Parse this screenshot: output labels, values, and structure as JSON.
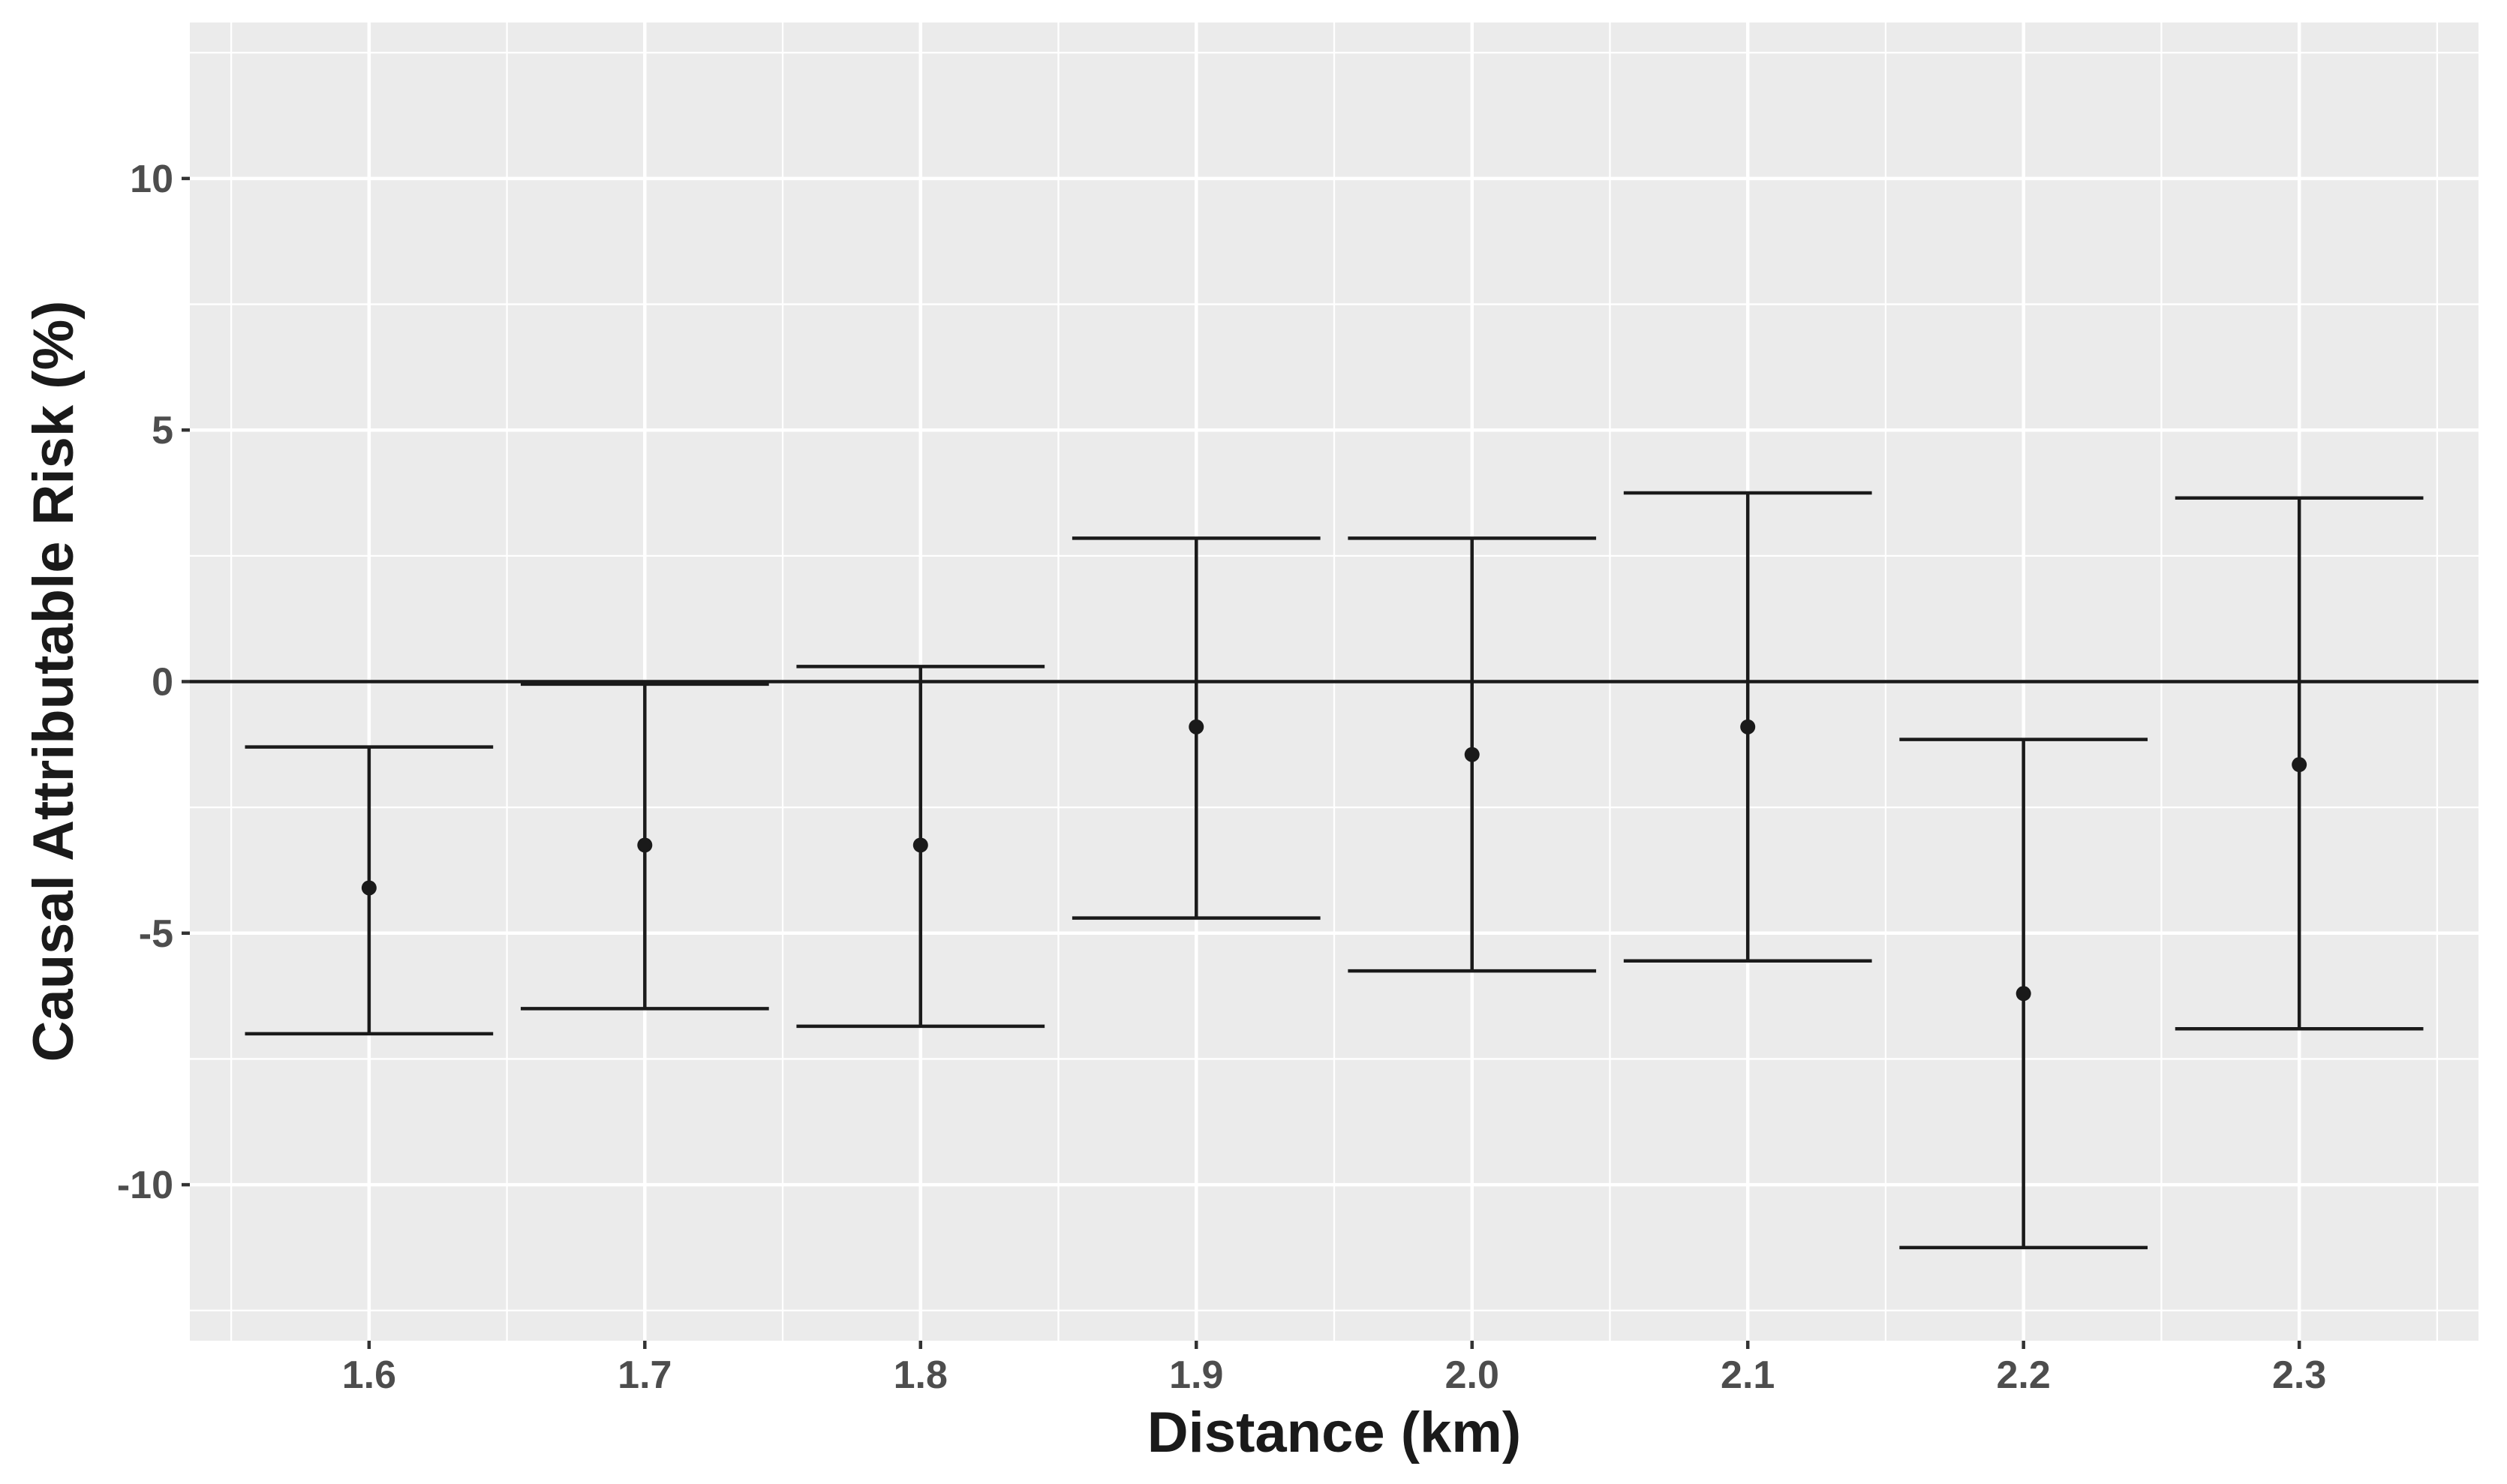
{
  "chart_data": {
    "type": "errorbar",
    "title": "",
    "xlabel": "Distance (km)",
    "ylabel": "Causal Attributable Risk (%)",
    "x_tick_labels": [
      "1.6",
      "1.7",
      "1.8",
      "1.9",
      "2.0",
      "2.1",
      "2.2",
      "2.3"
    ],
    "y_tick_labels": [
      "10",
      "5",
      "0",
      "-5",
      "-10"
    ],
    "y_ticks": [
      10,
      5,
      0,
      -5,
      -10
    ],
    "ylim": [
      -13.1,
      13.1
    ],
    "xlim": [
      1.535,
      2.365
    ],
    "reference_line_y": 0,
    "grid": true,
    "legend": "none",
    "points": [
      {
        "x": 1.6,
        "estimate": -4.1,
        "lower": -7.0,
        "upper": -1.3
      },
      {
        "x": 1.7,
        "estimate": -3.25,
        "lower": -6.5,
        "upper": -0.05
      },
      {
        "x": 1.8,
        "estimate": -3.25,
        "lower": -6.85,
        "upper": 0.3
      },
      {
        "x": 1.9,
        "estimate": -0.9,
        "lower": -4.7,
        "upper": 2.85
      },
      {
        "x": 2.0,
        "estimate": -1.45,
        "lower": -5.75,
        "upper": 2.85
      },
      {
        "x": 2.1,
        "estimate": -0.9,
        "lower": -5.55,
        "upper": 3.75
      },
      {
        "x": 2.2,
        "estimate": -6.2,
        "lower": -11.25,
        "upper": -1.15
      },
      {
        "x": 2.3,
        "estimate": -1.65,
        "lower": -6.9,
        "upper": 3.65
      }
    ],
    "colors": {
      "panel": "#ebebeb",
      "grid": "#ffffff",
      "marks": "#1a1a1a",
      "tick_text": "#4d4d4d"
    }
  }
}
